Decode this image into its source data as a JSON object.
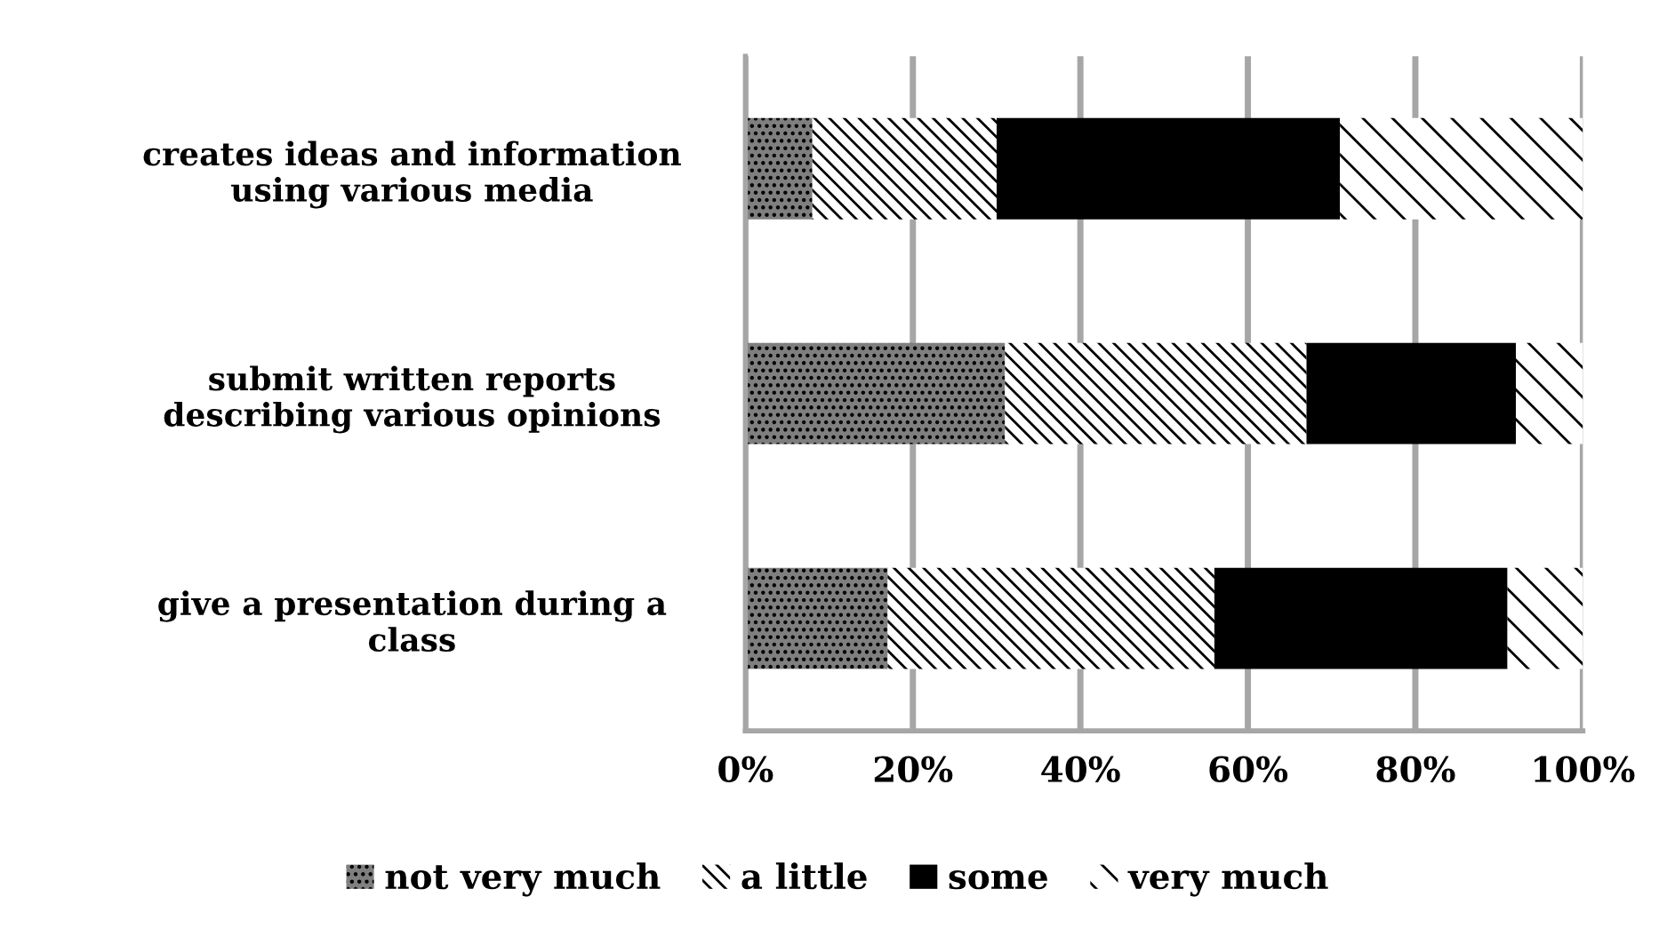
{
  "chart_data": {
    "type": "bar",
    "orientation": "horizontal",
    "stacked": true,
    "categories": [
      "creates ideas and information\nusing various media",
      "submit written reports\ndescribing various opinions",
      "give a presentation during a\nclass"
    ],
    "series": [
      {
        "name": "not very much",
        "color": "#7f7f7f",
        "values": [
          8,
          31,
          17
        ]
      },
      {
        "name": "a little",
        "color": "#ffffff",
        "values": [
          22,
          36,
          39
        ]
      },
      {
        "name": "some",
        "color": "#000000",
        "values": [
          41,
          25,
          35
        ]
      },
      {
        "name": "very much",
        "color": "#ffffff",
        "values": [
          29,
          8,
          9
        ]
      }
    ],
    "xlim": [
      0,
      100
    ],
    "xticks": [
      {
        "value": 0,
        "label": "0%"
      },
      {
        "value": 20,
        "label": "20%"
      },
      {
        "value": 40,
        "label": "40%"
      },
      {
        "value": 60,
        "label": "60%"
      },
      {
        "value": 80,
        "label": "80%"
      },
      {
        "value": 100,
        "label": "100%"
      }
    ],
    "grid": "x",
    "legend": "bottom"
  }
}
